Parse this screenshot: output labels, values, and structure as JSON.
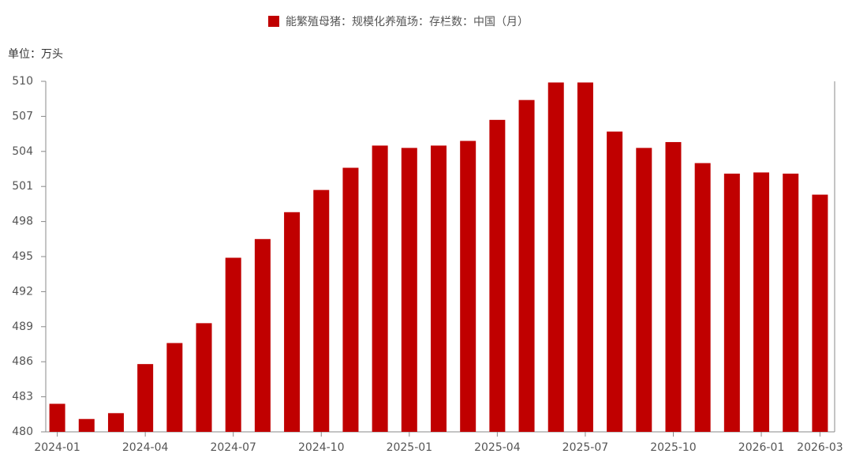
{
  "chart_data": {
    "type": "bar",
    "unit_label": "单位：万头",
    "categories": [
      "2024-01",
      null,
      null,
      "2024-04",
      null,
      null,
      "2024-07",
      null,
      null,
      "2024-10",
      null,
      null,
      "2025-01",
      null,
      null,
      "2025-04",
      null,
      null,
      "2025-07",
      null,
      null,
      "2025-10",
      null,
      null,
      "2026-01",
      null,
      "2026-03"
    ],
    "series": [
      {
        "name": "能繁殖母猪：规模化养殖场：存栏数：中国（月）",
        "color": "#c00000",
        "values": [
          482.4,
          481.1,
          481.6,
          485.8,
          487.6,
          489.3,
          494.9,
          496.5,
          498.8,
          500.7,
          502.6,
          504.5,
          504.3,
          504.5,
          504.9,
          506.7,
          508.4,
          509.9,
          509.9,
          505.7,
          504.3,
          504.8,
          503.0,
          502.1,
          502.2,
          502.1,
          500.3
        ]
      }
    ],
    "ylim": [
      480,
      510
    ],
    "yticks": [
      480,
      483,
      486,
      489,
      492,
      495,
      498,
      501,
      504,
      507,
      510
    ]
  }
}
